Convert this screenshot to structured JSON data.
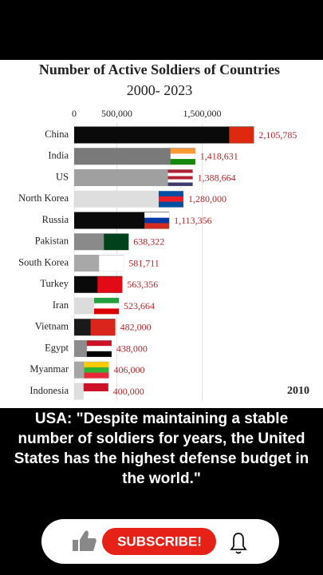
{
  "chart_data": {
    "type": "bar",
    "orientation": "horizontal",
    "title": "Number of Active Soldiers of Countries",
    "subtitle": "2000- 2023",
    "year": "2010",
    "categories": [
      "China",
      "India",
      "US",
      "North Korea",
      "Russia",
      "Pakistan",
      "South Korea",
      "Turkey",
      "Iran",
      "Vietnam",
      "Egypt",
      "Myanmar",
      "Indonesia"
    ],
    "values": [
      2105785,
      1418631,
      1388664,
      1280000,
      1113356,
      638322,
      581711,
      563356,
      523664,
      482000,
      438000,
      406000,
      400000
    ],
    "value_labels": [
      "2,105,785",
      "1,418,631",
      "1,388,664",
      "1,280,000",
      "1,113,356",
      "638,322",
      "581,711",
      "563,356",
      "523,664",
      "482,000",
      "438,000",
      "406,000",
      "400,000"
    ],
    "colors": [
      "#0a0a0a",
      "#7a7a7a",
      "#a0a0a0",
      "#dedede",
      "#0a0a0a",
      "#8a8a8a",
      "#a8a8a8",
      "#0a0a0a",
      "#dcdcdc",
      "#1a1a1a",
      "#8c8c8c",
      "#a6a6a6",
      "#dedede"
    ],
    "flags": [
      [
        "#de2910"
      ],
      [
        "#ff9933",
        "#ffffff",
        "#138808"
      ],
      [
        "#b22234",
        "#ffffff",
        "#b22234",
        "#ffffff",
        "#3c3b6e"
      ],
      [
        "#024fa2",
        "#ed1c27",
        "#024fa2"
      ],
      [
        "#ffffff",
        "#0039a6",
        "#d52b1e"
      ],
      [
        "#01411c"
      ],
      [
        "#ffffff"
      ],
      [
        "#e30a17"
      ],
      [
        "#239f40",
        "#ffffff",
        "#da0000"
      ],
      [
        "#da251d"
      ],
      [
        "#ce1126",
        "#ffffff",
        "#000000"
      ],
      [
        "#fecb00",
        "#34b233",
        "#ea2839"
      ],
      [
        "#ce1126",
        "#ffffff"
      ]
    ],
    "value_label_color": "#b3262a",
    "xlim": [
      0,
      2800000
    ],
    "xticks": [
      0,
      {
        "value": 500000,
        "label": "500,000"
      },
      {
        "value": 1500000,
        "label": "1,500,000"
      }
    ],
    "grid": true
  },
  "caption": "USA: \"Despite maintaining a stable number of soldiers for years, the United States has the highest defense budget in the world.\"",
  "subscribe": "SUBSCRIBE!"
}
